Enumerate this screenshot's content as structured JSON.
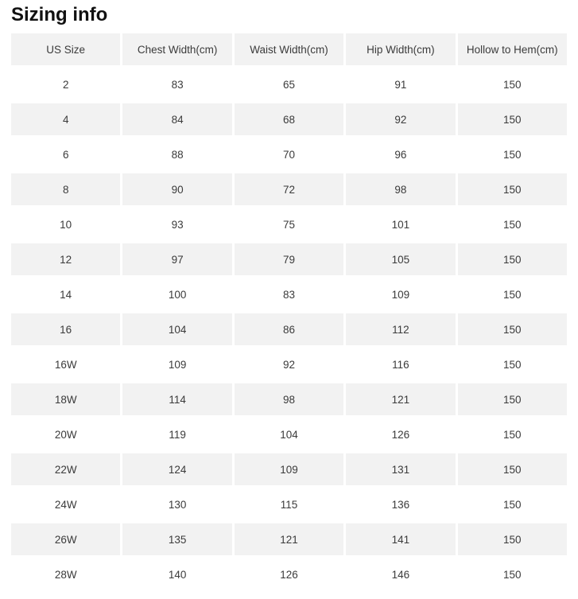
{
  "page": {
    "title": "Sizing info"
  },
  "colors": {
    "shaded_cell_bg": "#f2f2f2",
    "text": "#3b3b3b",
    "title_text": "#111111",
    "page_bg": "#ffffff"
  },
  "table": {
    "columns": [
      "US Size",
      "Chest Width(cm)",
      "Waist Width(cm)",
      "Hip Width(cm)",
      "Hollow to Hem(cm)"
    ],
    "rows": [
      [
        "2",
        "83",
        "65",
        "91",
        "150"
      ],
      [
        "4",
        "84",
        "68",
        "92",
        "150"
      ],
      [
        "6",
        "88",
        "70",
        "96",
        "150"
      ],
      [
        "8",
        "90",
        "72",
        "98",
        "150"
      ],
      [
        "10",
        "93",
        "75",
        "101",
        "150"
      ],
      [
        "12",
        "97",
        "79",
        "105",
        "150"
      ],
      [
        "14",
        "100",
        "83",
        "109",
        "150"
      ],
      [
        "16",
        "104",
        "86",
        "112",
        "150"
      ],
      [
        "16W",
        "109",
        "92",
        "116",
        "150"
      ],
      [
        "18W",
        "114",
        "98",
        "121",
        "150"
      ],
      [
        "20W",
        "119",
        "104",
        "126",
        "150"
      ],
      [
        "22W",
        "124",
        "109",
        "131",
        "150"
      ],
      [
        "24W",
        "130",
        "115",
        "136",
        "150"
      ],
      [
        "26W",
        "135",
        "121",
        "141",
        "150"
      ],
      [
        "28W",
        "140",
        "126",
        "146",
        "150"
      ]
    ]
  }
}
